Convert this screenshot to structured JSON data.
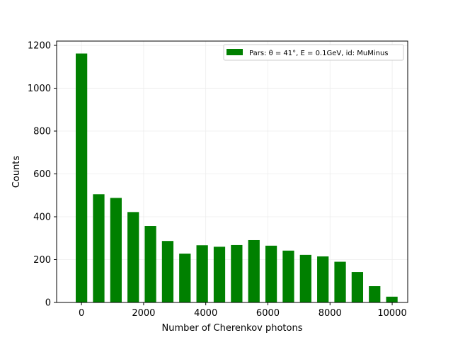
{
  "chart_data": {
    "type": "bar",
    "xlabel": "Number of Cherenkov photons",
    "ylabel": "Counts",
    "x": [
      0,
      555,
      1110,
      1665,
      2220,
      2775,
      3330,
      3885,
      4440,
      4995,
      5550,
      6105,
      6660,
      7215,
      7770,
      8325,
      8880,
      9435,
      9990
    ],
    "values": [
      1162,
      505,
      488,
      422,
      357,
      287,
      228,
      267,
      260,
      268,
      291,
      265,
      242,
      222,
      215,
      190,
      142,
      76,
      27
    ],
    "bar_width": 370,
    "xlim": [
      -800,
      10500
    ],
    "ylim": [
      0,
      1220
    ],
    "xticks": [
      0,
      2000,
      4000,
      6000,
      8000,
      10000
    ],
    "xtick_labels": [
      "0",
      "2000",
      "4000",
      "6000",
      "8000",
      "10000"
    ],
    "yticks": [
      0,
      200,
      400,
      600,
      800,
      1000,
      1200
    ],
    "ytick_labels": [
      "0",
      "200",
      "400",
      "600",
      "800",
      "1000",
      "1200"
    ],
    "grid": true,
    "legend_position": "top-right",
    "series": [
      {
        "name": "Pars: θ = 41°, E = 0.1GeV, id: MuMinus",
        "color": "#008000"
      }
    ]
  }
}
